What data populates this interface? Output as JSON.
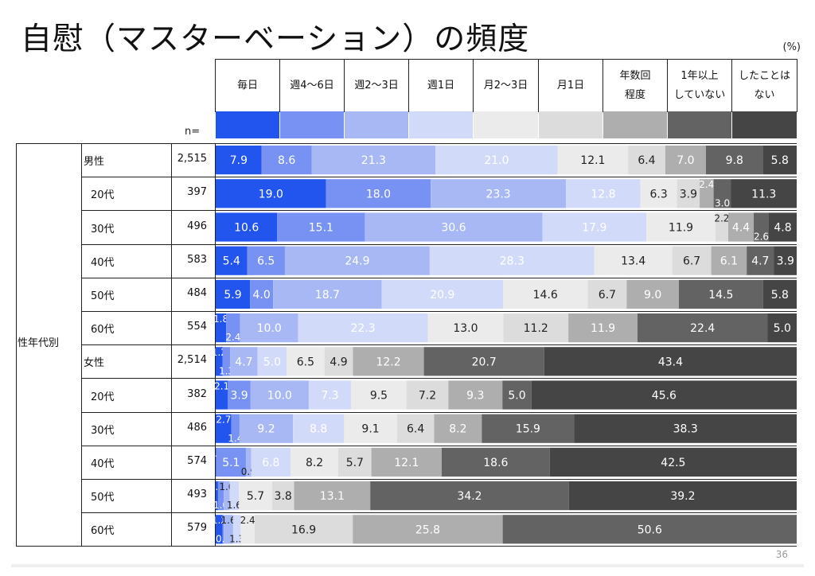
{
  "page": {
    "title": "自慰（マスターベーション）の頻度",
    "unit": "(%)",
    "n_label": "n=",
    "group_label": "性年代別",
    "page_number": "36"
  },
  "chart_data": {
    "type": "bar",
    "orientation": "horizontal",
    "stacked": "percent",
    "title": "自慰（マスターベーション）の頻度",
    "xlim": [
      0,
      100
    ],
    "series": [
      {
        "name": "毎日",
        "color": "#2255EE",
        "values": [
          7.9,
          19.0,
          10.6,
          5.4,
          5.9,
          1.8,
          1.2,
          2.1,
          2.7,
          0.1,
          0.4,
          1.2
        ]
      },
      {
        "name": "週4～6日",
        "color": "#7792F2",
        "values": [
          8.6,
          18.0,
          15.1,
          6.5,
          4.0,
          2.4,
          1.3,
          3.9,
          1.4,
          5.1,
          1.0,
          0.2
        ]
      },
      {
        "name": "週2～3日",
        "color": "#A7B8F5",
        "values": [
          21.3,
          23.3,
          30.6,
          24.9,
          18.7,
          10.0,
          4.7,
          10.0,
          9.2,
          0.9,
          1.0,
          1.6
        ]
      },
      {
        "name": "週1日",
        "color": "#D2DAFA",
        "values": [
          21.0,
          12.8,
          17.9,
          28.3,
          20.9,
          22.3,
          5.0,
          7.3,
          8.8,
          6.8,
          1.6,
          1.3
        ]
      },
      {
        "name": "月2～3日",
        "color": "#EBEBEB",
        "values": [
          12.1,
          6.3,
          11.9,
          13.4,
          14.6,
          13.0,
          6.5,
          9.5,
          9.1,
          8.2,
          5.7,
          2.4
        ]
      },
      {
        "name": "月1日",
        "color": "#DCDCDC",
        "values": [
          6.4,
          3.9,
          2.2,
          6.7,
          6.7,
          11.2,
          4.9,
          7.2,
          6.4,
          5.7,
          3.8,
          16.9
        ]
      },
      {
        "name": "年数回\n程度",
        "color": "#AEAEAE",
        "values": [
          7.0,
          2.4,
          4.4,
          6.1,
          9.0,
          11.9,
          12.2,
          9.3,
          8.2,
          12.1,
          13.1,
          25.8
        ]
      },
      {
        "name": "1年以上\nしていない",
        "color": "#636363",
        "values": [
          9.8,
          3.0,
          2.6,
          4.7,
          14.5,
          22.4,
          20.7,
          5.0,
          15.9,
          18.6,
          34.2,
          50.6
        ]
      },
      {
        "name": "したことは\nない",
        "color": "#454545",
        "values": [
          5.8,
          11.3,
          4.8,
          3.9,
          5.8,
          5.0,
          43.4,
          45.6,
          38.3,
          42.5,
          39.2,
          0.0
        ]
      }
    ],
    "rows": [
      {
        "label": "男性",
        "n": "2,515",
        "level": "gender"
      },
      {
        "label": "20代",
        "n": "397",
        "level": "age"
      },
      {
        "label": "30代",
        "n": "496",
        "level": "age"
      },
      {
        "label": "40代",
        "n": "583",
        "level": "age"
      },
      {
        "label": "50代",
        "n": "484",
        "level": "age"
      },
      {
        "label": "60代",
        "n": "554",
        "level": "age"
      },
      {
        "label": "女性",
        "n": "2,514",
        "level": "gender"
      },
      {
        "label": "20代",
        "n": "382",
        "level": "age"
      },
      {
        "label": "30代",
        "n": "486",
        "level": "age"
      },
      {
        "label": "40代",
        "n": "574",
        "level": "age"
      },
      {
        "label": "50代",
        "n": "493",
        "level": "age"
      },
      {
        "label": "60代",
        "n": "579",
        "level": "age"
      }
    ]
  }
}
